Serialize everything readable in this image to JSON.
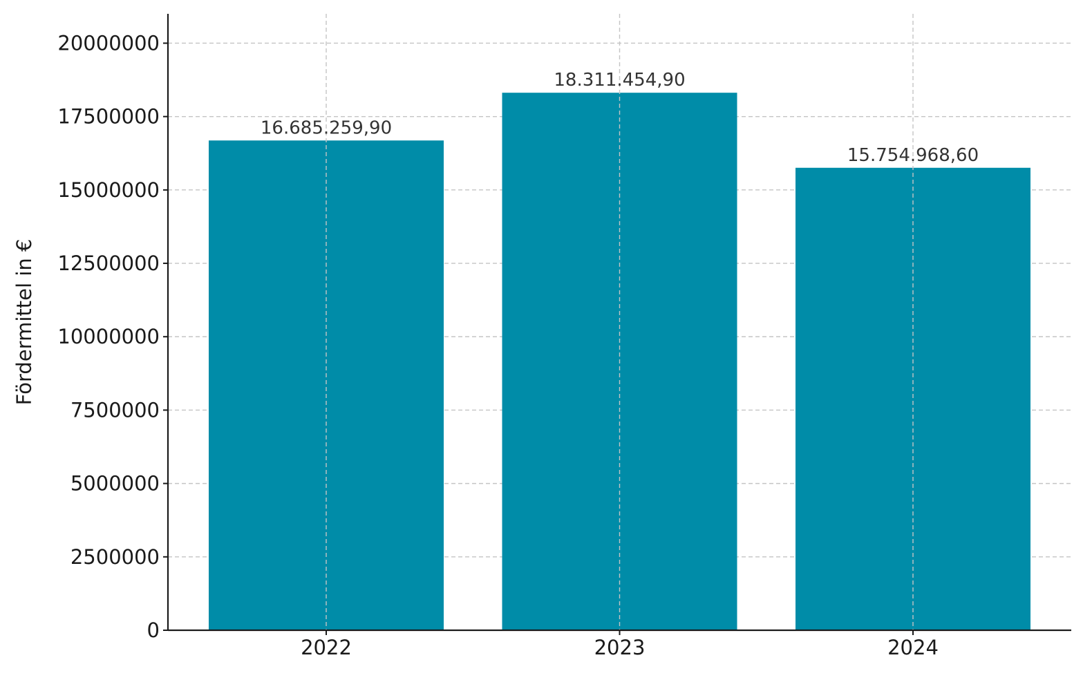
{
  "chart_data": {
    "type": "bar",
    "categories": [
      "2022",
      "2023",
      "2024"
    ],
    "values": [
      16685259.9,
      18311454.9,
      15754968.6
    ],
    "data_labels": [
      "16.685.259,90",
      "18.311.454,90",
      "15.754.968,60"
    ],
    "ylabel": "Fördermittel in €",
    "xlabel": "",
    "ylim": [
      0,
      21000000
    ],
    "yticks": [
      0,
      2500000,
      5000000,
      7500000,
      10000000,
      12500000,
      15000000,
      17500000,
      20000000
    ],
    "ytick_labels": [
      "0",
      "2500000",
      "5000000",
      "7500000",
      "10000000",
      "12500000",
      "15000000",
      "17500000",
      "20000000"
    ],
    "grid": true,
    "bar_color": "#008ca8"
  }
}
